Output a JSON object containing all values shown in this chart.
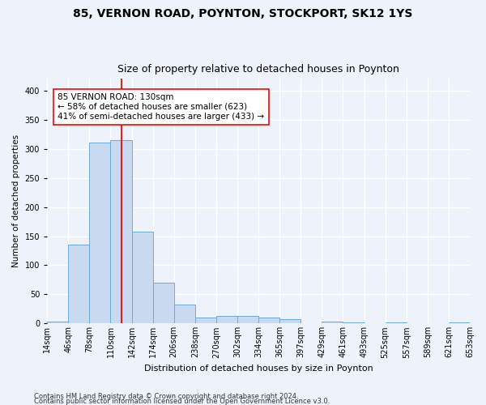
{
  "title1": "85, VERNON ROAD, POYNTON, STOCKPORT, SK12 1YS",
  "title2": "Size of property relative to detached houses in Poynton",
  "xlabel": "Distribution of detached houses by size in Poynton",
  "ylabel": "Number of detached properties",
  "bar_values": [
    4,
    136,
    311,
    315,
    157,
    70,
    32,
    10,
    13,
    13,
    10,
    8,
    0,
    4,
    2,
    0,
    2,
    0,
    0,
    2
  ],
  "bar_labels": [
    "14sqm",
    "46sqm",
    "78sqm",
    "110sqm",
    "142sqm",
    "174sqm",
    "206sqm",
    "238sqm",
    "270sqm",
    "302sqm",
    "334sqm",
    "365sqm",
    "397sqm",
    "429sqm",
    "461sqm",
    "493sqm",
    "525sqm",
    "557sqm",
    "589sqm",
    "621sqm",
    "653sqm"
  ],
  "bar_color": "#c9daf0",
  "bar_edge_color": "#6daad6",
  "vertical_line_x": 3.5,
  "vertical_line_color": "red",
  "annotation_text": "85 VERNON ROAD: 130sqm\n← 58% of detached houses are smaller (623)\n41% of semi-detached houses are larger (433) →",
  "annotation_box_color": "white",
  "annotation_box_edge_color": "red",
  "ylim": [
    0,
    420
  ],
  "yticks": [
    0,
    50,
    100,
    150,
    200,
    250,
    300,
    350,
    400
  ],
  "footer1": "Contains HM Land Registry data © Crown copyright and database right 2024.",
  "footer2": "Contains public sector information licensed under the Open Government Licence v3.0.",
  "bg_color": "#eef2fa",
  "grid_color": "#ffffff",
  "title1_fontsize": 10,
  "title2_fontsize": 9,
  "annot_fontsize": 7.5,
  "xlabel_fontsize": 8,
  "ylabel_fontsize": 7.5,
  "tick_fontsize": 7,
  "footer_fontsize": 6
}
